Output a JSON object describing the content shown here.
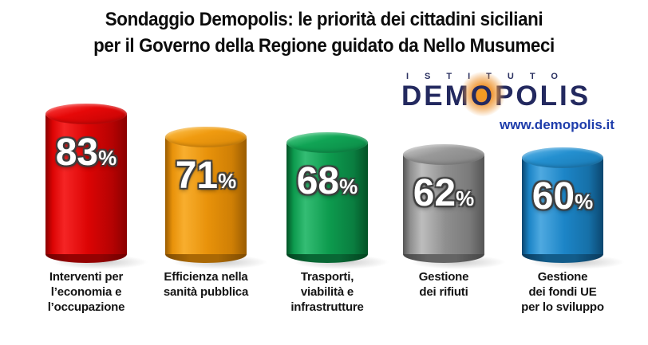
{
  "title": {
    "line1": "Sondaggio Demopolis: le priorità dei cittadini siciliani",
    "line2": "per il Governo della Regione guidato da Nello Musumeci"
  },
  "logo": {
    "istituto": "ISTITUTO",
    "demopolis_pre": "DEM",
    "demopolis_o": "O",
    "demopolis_post": "POLIS",
    "website": "www.demopolis.it",
    "navy_color": "#23295f",
    "orange_glow_color": "#ef9530",
    "website_color": "#1e3dab"
  },
  "chart_data": {
    "type": "bar",
    "bar_style": "3d-cylinder",
    "title": "Sondaggio Demopolis: le priorità dei cittadini siciliani per il Governo della Regione guidato da Nello Musumeci",
    "categories": [
      "Interventi per l’economia e l’occupazione",
      "Efficienza nella sanità pubblica",
      "Trasporti, viabilità e infrastrutture",
      "Gestione dei rifiuti",
      "Gestione dei fondi UE per lo sviluppo"
    ],
    "values": [
      83,
      71,
      68,
      62,
      60
    ],
    "data_labels": [
      "83%",
      "71%",
      "68%",
      "62%",
      "60%"
    ],
    "unit": "%",
    "ylim": [
      0,
      100
    ],
    "bar_colors": [
      "#dc0404",
      "#e8920a",
      "#0d9b4e",
      "#8f8f8f",
      "#1c85c7"
    ],
    "grid": false,
    "legend": false,
    "axes_visible": false
  },
  "bars": [
    {
      "value": 83,
      "unit": "%",
      "label_lines": [
        "Interventi per",
        "l’economia e",
        "l’occupazione"
      ],
      "color": {
        "c": "#dc0404",
        "hi": "#f52525",
        "lo": "#8a0000",
        "c2": "#b50303",
        "cap": "#e60808",
        "caphi": "#ff4d4d"
      }
    },
    {
      "value": 71,
      "unit": "%",
      "label_lines": [
        "Efficienza nella",
        "sanità pubblica"
      ],
      "color": {
        "c": "#e8920a",
        "hi": "#f8ae2e",
        "lo": "#9a5c02",
        "c2": "#cf7f05",
        "cap": "#f09b10",
        "caphi": "#ffc95e"
      }
    },
    {
      "value": 68,
      "unit": "%",
      "label_lines": [
        "Trasporti,",
        "viabilità e",
        "infrastrutture"
      ],
      "color": {
        "c": "#0d9b4e",
        "hi": "#34bd74",
        "lo": "#035226",
        "c2": "#0a7e40",
        "cap": "#10a455",
        "caphi": "#5cd492"
      }
    },
    {
      "value": 62,
      "unit": "%",
      "label_lines": [
        "Gestione",
        "dei rifiuti"
      ],
      "color": {
        "c": "#8f8f8f",
        "hi": "#bdbdbd",
        "lo": "#555555",
        "c2": "#7a7a7a",
        "cap": "#999999",
        "caphi": "#d2d2d2"
      }
    },
    {
      "value": 60,
      "unit": "%",
      "label_lines": [
        "Gestione",
        "dei fondi UE",
        "per lo sviluppo"
      ],
      "color": {
        "c": "#1c85c7",
        "hi": "#4fa9e0",
        "lo": "#0b466f",
        "c2": "#1670a8",
        "cap": "#2490d0",
        "caphi": "#6cbcec"
      }
    }
  ]
}
